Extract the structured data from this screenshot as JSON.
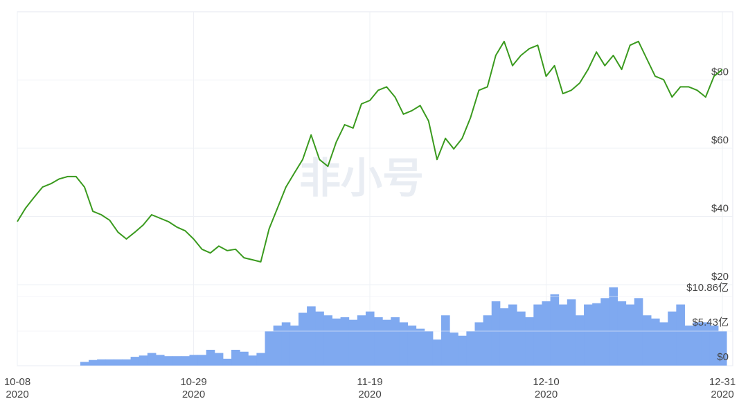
{
  "chart_data": {
    "type": "price-volume",
    "watermark": "非小号",
    "x": [
      "2020-10-08",
      "2020-10-09",
      "2020-10-10",
      "2020-10-11",
      "2020-10-12",
      "2020-10-13",
      "2020-10-14",
      "2020-10-15",
      "2020-10-16",
      "2020-10-17",
      "2020-10-18",
      "2020-10-19",
      "2020-10-20",
      "2020-10-21",
      "2020-10-22",
      "2020-10-23",
      "2020-10-24",
      "2020-10-25",
      "2020-10-26",
      "2020-10-27",
      "2020-10-28",
      "2020-10-29",
      "2020-10-30",
      "2020-10-31",
      "2020-11-01",
      "2020-11-02",
      "2020-11-03",
      "2020-11-04",
      "2020-11-05",
      "2020-11-06",
      "2020-11-07",
      "2020-11-08",
      "2020-11-09",
      "2020-11-10",
      "2020-11-11",
      "2020-11-12",
      "2020-11-13",
      "2020-11-14",
      "2020-11-15",
      "2020-11-16",
      "2020-11-17",
      "2020-11-18",
      "2020-11-19",
      "2020-11-20",
      "2020-11-21",
      "2020-11-22",
      "2020-11-23",
      "2020-11-24",
      "2020-11-25",
      "2020-11-26",
      "2020-11-27",
      "2020-11-28",
      "2020-11-29",
      "2020-11-30",
      "2020-12-01",
      "2020-12-02",
      "2020-12-03",
      "2020-12-04",
      "2020-12-05",
      "2020-12-06",
      "2020-12-07",
      "2020-12-08",
      "2020-12-09",
      "2020-12-10",
      "2020-12-11",
      "2020-12-12",
      "2020-12-13",
      "2020-12-14",
      "2020-12-15",
      "2020-12-16",
      "2020-12-17",
      "2020-12-18",
      "2020-12-19",
      "2020-12-20",
      "2020-12-21",
      "2020-12-22",
      "2020-12-23",
      "2020-12-24",
      "2020-12-25",
      "2020-12-26",
      "2020-12-27",
      "2020-12-28",
      "2020-12-29",
      "2020-12-30",
      "2020-12-31"
    ],
    "xlim": [
      "2020-10-08",
      "2020-12-31"
    ],
    "xticks": [
      {
        "value": "2020-10-08",
        "label": "10-08",
        "year": "2020"
      },
      {
        "value": "2020-10-29",
        "label": "10-29",
        "year": "2020"
      },
      {
        "value": "2020-11-19",
        "label": "11-19",
        "year": "2020"
      },
      {
        "value": "2020-12-10",
        "label": "12-10",
        "year": "2020"
      },
      {
        "value": "2020-12-31",
        "label": "12-31",
        "year": "2020"
      }
    ],
    "series": [
      {
        "name": "price",
        "color": "#3a9a1e",
        "axis": "y",
        "values": [
          38.5,
          42.5,
          45.6,
          48.6,
          49.6,
          51,
          51.7,
          51.7,
          48.6,
          41.5,
          40.5,
          38.9,
          35.4,
          33.4,
          35.4,
          37.5,
          40.5,
          39.5,
          38.5,
          36.9,
          35.8,
          33.4,
          30.4,
          29.3,
          31.3,
          30,
          30.4,
          27.9,
          27.3,
          26.7,
          36.4,
          42.5,
          48.6,
          52.7,
          56.7,
          63.9,
          56.7,
          54.7,
          61.8,
          66.9,
          65.9,
          73,
          74,
          77,
          78,
          75,
          70,
          71,
          72.5,
          68,
          56.7,
          62.9,
          59.8,
          62.9,
          69,
          77,
          78,
          87.2,
          91.3,
          84.2,
          87.2,
          89.2,
          90.2,
          81.1,
          84.2,
          76,
          77,
          79.1,
          83.1,
          88.2,
          84.2,
          87.2,
          83.1,
          90.2,
          91.3,
          86.2,
          81.1,
          80.1,
          75,
          78,
          78,
          77,
          75,
          81.1,
          83.1
        ]
      },
      {
        "name": "volume",
        "color": "#7fa9f0",
        "axis": "y2",
        "values": [
          0,
          0,
          0,
          0,
          0,
          0,
          0,
          0,
          0.6,
          0.9,
          1,
          1,
          1,
          1,
          1.4,
          1.6,
          2,
          1.7,
          1.5,
          1.5,
          1.5,
          1.7,
          1.7,
          2.5,
          2,
          1.1,
          2.5,
          2.2,
          1.6,
          2,
          5.4,
          6.3,
          6.8,
          6.3,
          8.3,
          9.3,
          8.5,
          7.9,
          7.4,
          7.6,
          7.2,
          7.9,
          8.5,
          7.6,
          7.2,
          7.6,
          6.8,
          6.3,
          5.8,
          5.4,
          4.1,
          7.9,
          5.2,
          4.7,
          5.4,
          6.8,
          7.9,
          10.1,
          9,
          9.6,
          8.5,
          7.6,
          9.6,
          10.1,
          11.2,
          9.6,
          10.4,
          7.9,
          9.6,
          9.8,
          10.6,
          12.3,
          10.1,
          9.6,
          10.6,
          7.9,
          7.4,
          6.8,
          8.5,
          9.6,
          6.3,
          6.8,
          6.8,
          6.3,
          5.4
        ]
      }
    ],
    "ylim": [
      20,
      100
    ],
    "yticks": [
      {
        "value": 20,
        "label": "$20"
      },
      {
        "value": 40,
        "label": "$40"
      },
      {
        "value": 60,
        "label": "$60"
      },
      {
        "value": 80,
        "label": "$80"
      }
    ],
    "y2lim": [
      0,
      12.7
    ],
    "y2ticks": [
      {
        "value": 0,
        "label": "$0"
      },
      {
        "value": 5.43,
        "label": "$5.43亿"
      },
      {
        "value": 10.86,
        "label": "$10.86亿"
      }
    ],
    "grid": true
  }
}
